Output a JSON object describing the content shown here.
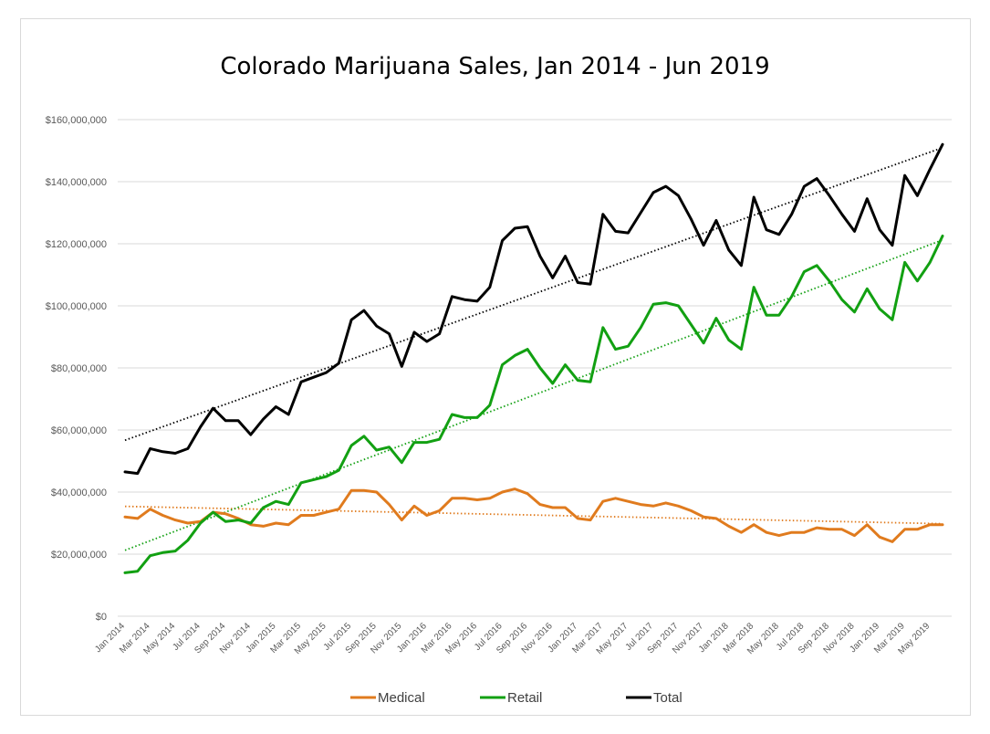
{
  "chart_data": {
    "type": "line",
    "title": "Colorado Marijuana Sales, Jan 2014 - Jun 2019",
    "xlabel": "",
    "ylabel": "",
    "ylim": [
      0,
      160000000
    ],
    "y_ticks": [
      "$0",
      "$20,000,000",
      "$40,000,000",
      "$60,000,000",
      "$80,000,000",
      "$100,000,000",
      "$120,000,000",
      "$140,000,000",
      "$160,000,000"
    ],
    "x_tick_labels": [
      "Jan 2014",
      "Mar 2014",
      "May 2014",
      "Jul 2014",
      "Sep 2014",
      "Nov 2014",
      "Jan 2015",
      "Mar 2015",
      "May 2015",
      "Jul 2015",
      "Sep 2015",
      "Nov 2015",
      "Jan 2016",
      "Mar 2016",
      "May 2016",
      "Jul 2016",
      "Sep 2016",
      "Nov 2016",
      "Jan 2017",
      "Mar 2017",
      "May 2017",
      "Jul 2017",
      "Sep 2017",
      "Nov 2017",
      "Jan 2018",
      "Mar 2018",
      "May 2018",
      "Jul 2018",
      "Sep 2018",
      "Nov 2018",
      "Jan 2019",
      "Mar 2019",
      "May 2019"
    ],
    "x_tick_month_indices": [
      0,
      2,
      4,
      6,
      8,
      10,
      12,
      14,
      16,
      18,
      20,
      22,
      24,
      26,
      28,
      30,
      32,
      34,
      36,
      38,
      40,
      42,
      44,
      46,
      48,
      50,
      52,
      54,
      56,
      58,
      60,
      62,
      64
    ],
    "grid": true,
    "legend_position": "bottom",
    "series": [
      {
        "name": "Medical",
        "color": "#e07b1e",
        "trendline": true,
        "values": [
          32,
          31.5,
          34.5,
          32.5,
          31,
          30,
          30.5,
          33.5,
          33,
          31.5,
          29.5,
          29,
          30,
          29.5,
          32.5,
          32.5,
          33.5,
          34.5,
          40.5,
          40.5,
          40,
          36,
          31,
          35.5,
          32.5,
          34,
          38,
          38,
          37.5,
          38,
          40,
          41,
          39.5,
          36,
          35,
          35,
          31.5,
          31,
          37,
          38,
          37,
          36,
          35.5,
          36.5,
          35.5,
          34,
          32,
          31.5,
          29,
          27,
          29.5,
          27,
          26,
          27,
          27,
          28.5,
          28,
          28,
          26,
          29.5,
          25.5,
          24,
          28,
          28,
          29.5,
          29.5
        ]
      },
      {
        "name": "Retail",
        "color": "#12a012",
        "trendline": true,
        "values": [
          14,
          14.5,
          19.5,
          20.5,
          21,
          24.5,
          30,
          33.5,
          30.5,
          31,
          30,
          35,
          37,
          36,
          43,
          44,
          45,
          47,
          55,
          58,
          53.5,
          54.5,
          49.5,
          56,
          56,
          57,
          65,
          64,
          64,
          68,
          81,
          84,
          86,
          80,
          75,
          81,
          76,
          75.5,
          93,
          86,
          87,
          93,
          100.5,
          101,
          100,
          94,
          88,
          96,
          89,
          86,
          106,
          97,
          97,
          103,
          111,
          113,
          108,
          102,
          98,
          105.5,
          99,
          95.5,
          114,
          108,
          114,
          122.5
        ]
      },
      {
        "name": "Total",
        "color": "#000000",
        "trendline": true,
        "values": [
          46.5,
          46,
          54,
          53,
          52.5,
          54,
          61,
          67,
          63,
          63,
          58.5,
          63.5,
          67.5,
          65,
          75.5,
          77,
          78.5,
          81.5,
          95.5,
          98.5,
          93.5,
          91,
          80.5,
          91.5,
          88.5,
          91,
          103,
          102,
          101.5,
          106,
          121,
          125,
          125.5,
          116,
          109,
          116,
          107.5,
          107,
          129.5,
          124,
          123.5,
          130,
          136.5,
          138.5,
          135.5,
          128,
          119.5,
          127.5,
          118,
          113,
          135,
          124.5,
          123,
          129.5,
          138.5,
          141,
          135.5,
          129.5,
          124,
          134.5,
          124.5,
          119.5,
          142,
          135.5,
          144,
          152
        ]
      }
    ]
  }
}
